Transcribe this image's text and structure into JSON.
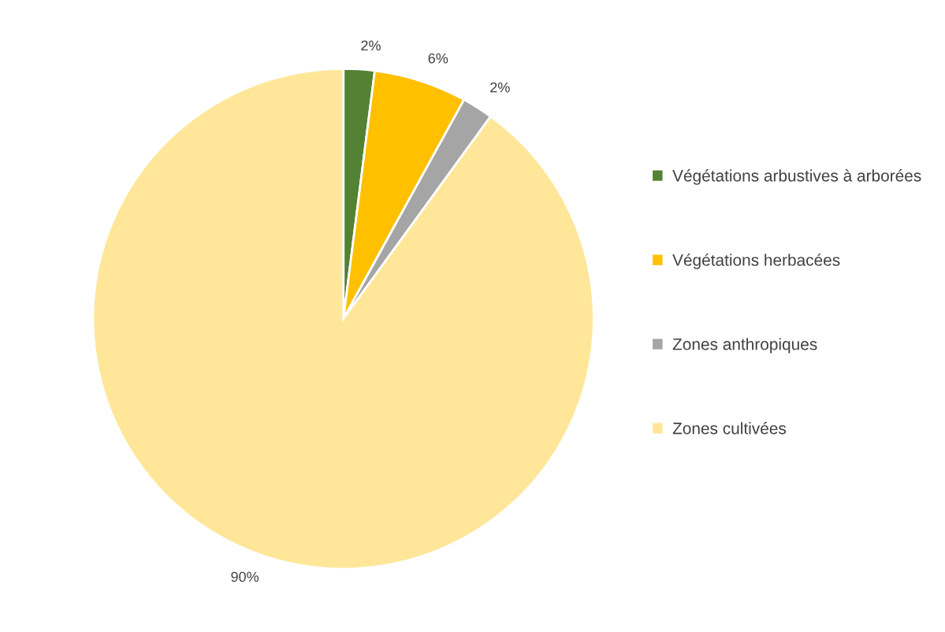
{
  "chart_data": {
    "type": "pie",
    "categories": [
      "Végétations arbustives à arborées",
      "Végétations herbacées",
      "Zones anthropiques",
      "Zones cultivées"
    ],
    "values": [
      2,
      6,
      2,
      90
    ],
    "colors": [
      "#548235",
      "#ffc000",
      "#a5a5a5",
      "#ffe699"
    ],
    "value_labels": [
      "2%",
      "6%",
      "2%",
      "90%"
    ],
    "legend": "right"
  }
}
